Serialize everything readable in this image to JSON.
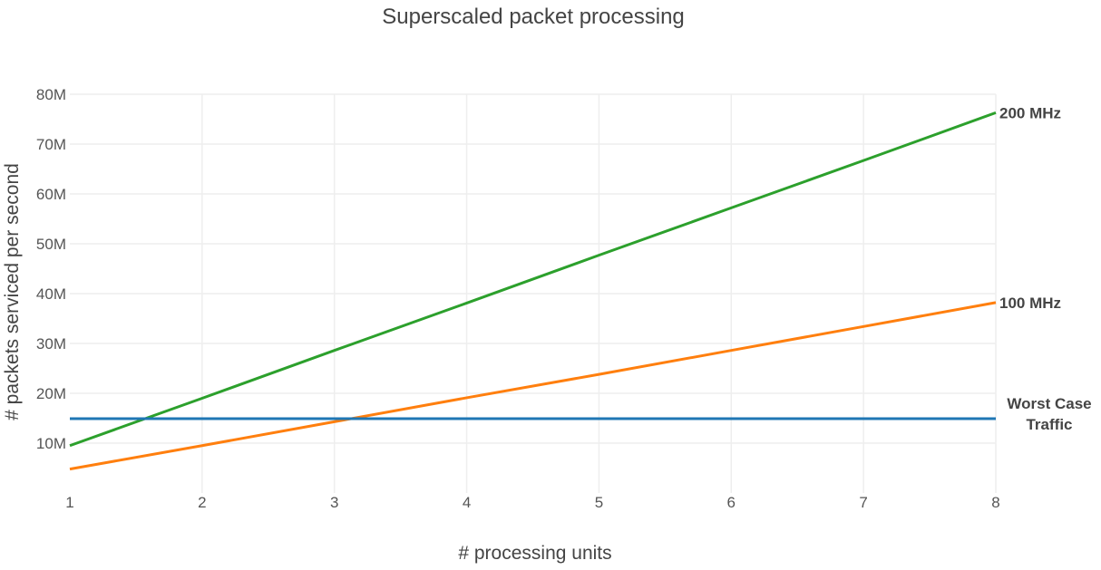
{
  "chart_data": {
    "type": "line",
    "title": "Superscaled packet processing",
    "xlabel": "# processing units",
    "ylabel": "# packets serviced per second",
    "x": [
      1,
      2,
      3,
      4,
      5,
      6,
      7,
      8
    ],
    "xlim": [
      1,
      8
    ],
    "ylim": [
      0,
      80000000
    ],
    "x_ticks": [
      "1",
      "2",
      "3",
      "4",
      "5",
      "6",
      "7",
      "8"
    ],
    "y_ticks": [
      {
        "value": 10000000,
        "label": "10M"
      },
      {
        "value": 20000000,
        "label": "20M"
      },
      {
        "value": 30000000,
        "label": "30M"
      },
      {
        "value": 40000000,
        "label": "40M"
      },
      {
        "value": 50000000,
        "label": "50M"
      },
      {
        "value": 60000000,
        "label": "60M"
      },
      {
        "value": 70000000,
        "label": "70M"
      },
      {
        "value": 80000000,
        "label": "80M"
      }
    ],
    "grid": true,
    "legend": "none (series labeled at line ends)",
    "series": [
      {
        "name": "200 MHz",
        "color": "#2ca02c",
        "values": [
          9500000,
          19000000,
          28600000,
          38100000,
          47700000,
          57200000,
          66700000,
          76300000
        ]
      },
      {
        "name": "100 MHz",
        "color": "#ff7f0e",
        "values": [
          4800000,
          9500000,
          14300000,
          19100000,
          23800000,
          28600000,
          33400000,
          38200000
        ]
      },
      {
        "name": "Worst Case Traffic",
        "color": "#1f77b4",
        "label_lines": [
          "Worst Case",
          "Traffic"
        ],
        "values": [
          14900000,
          14900000,
          14900000,
          14900000,
          14900000,
          14900000,
          14900000,
          14900000
        ]
      }
    ]
  }
}
